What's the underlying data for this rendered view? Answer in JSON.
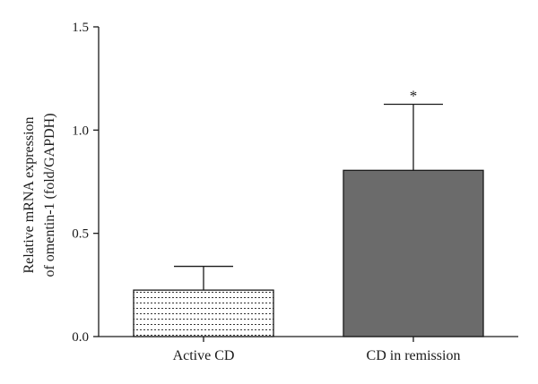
{
  "chart_data": {
    "type": "bar",
    "title": "",
    "xlabel": "",
    "ylabel_lines": [
      "Relative mRNA expression",
      "of omentin-1 (fold/GAPDH)"
    ],
    "categories": [
      "Active CD",
      "CD in remission"
    ],
    "values": [
      0.225,
      0.805
    ],
    "errors": [
      0.115,
      0.32
    ],
    "annotations": [
      "",
      "*"
    ],
    "ylim": [
      0,
      1.5
    ],
    "yticks": [
      0.0,
      0.5,
      1.0,
      1.5
    ],
    "ytick_labels": [
      "0.0",
      "0.5",
      "1.0",
      "1.5"
    ],
    "grid": false,
    "bar_styles": [
      "hatched-horizontal-dotted",
      "solid"
    ],
    "colors": {
      "bar_solid": "#6b6b6b",
      "hatch": "#333333",
      "axis": "#1a1a1a"
    }
  }
}
